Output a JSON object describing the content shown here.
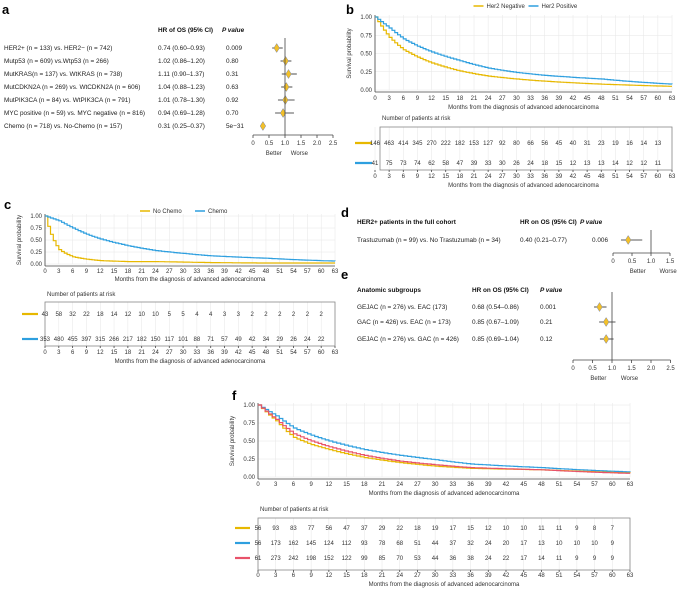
{
  "colors": {
    "yellow": "#E7B800",
    "blue": "#2E9FDF",
    "red": "#E8526A"
  },
  "panels": {
    "a": "a",
    "b": "b",
    "c": "c",
    "d": "d",
    "e": "e",
    "f": "f"
  },
  "forest_a": {
    "header_hr": "HR of OS (95% CI)",
    "header_p": "P value",
    "rows": [
      {
        "label": "HER2+ (n = 133) vs. HER2− (n = 742)",
        "hr_text": "0.74 (0.60–0.93)",
        "p": "0.009",
        "hr": 0.74,
        "lo": 0.6,
        "hi": 0.93
      },
      {
        "label": "Mutp53 (n = 609) vs.Wtp53 (n = 266)",
        "hr_text": "1.02 (0.86–1.20)",
        "p": "0.80",
        "hr": 1.02,
        "lo": 0.86,
        "hi": 1.2
      },
      {
        "label": "MutKRAS(n = 137) vs. WtKRAS (n = 738)",
        "hr_text": "1.11 (0.90–1.37)",
        "p": "0.31",
        "hr": 1.11,
        "lo": 0.9,
        "hi": 1.37
      },
      {
        "label": "MutCDKN2A (n = 269) vs. WtCDKN2A (n = 606)",
        "hr_text": "1.04 (0.88–1.23)",
        "p": "0.63",
        "hr": 1.04,
        "lo": 0.88,
        "hi": 1.23
      },
      {
        "label": "MutPIK3CA (n = 84) vs. WtPIK3CA (n = 791)",
        "hr_text": "1.01 (0.78–1.30)",
        "p": "0.92",
        "hr": 1.01,
        "lo": 0.78,
        "hi": 1.3
      },
      {
        "label": "MYC positive (n = 59) vs. MYC negative (n = 816)",
        "hr_text": "0.94 (0.69–1.28)",
        "p": "0.70",
        "hr": 0.94,
        "lo": 0.69,
        "hi": 1.28
      },
      {
        "label": "Chemo (n = 718) vs. No-Chemo (n = 157)",
        "hr_text": "0.31 (0.25–0.37)",
        "p": "5e−31",
        "hr": 0.31,
        "lo": 0.25,
        "hi": 0.37
      }
    ],
    "ticks": [
      "0",
      "0.5",
      "1.0",
      "1.5",
      "2.0",
      "2.5"
    ],
    "better": "Better",
    "worse": "Worse"
  },
  "forest_d": {
    "title": "HER2+ patients in the full cohort",
    "header_hr": "HR on OS (95% CI)",
    "header_p": "P value",
    "rows": [
      {
        "label": "Trastuzumab (n = 99) vs. No Trastuzumab (n = 34)",
        "hr_text": "0.40 (0.21–0.77)",
        "p": "0.006",
        "hr": 0.4,
        "lo": 0.21,
        "hi": 0.77
      }
    ],
    "ticks": [
      "0",
      "0.5",
      "1.0",
      "1.5"
    ],
    "better": "Better",
    "worse": "Worse"
  },
  "forest_e": {
    "title": "Anatomic subgroups",
    "header_hr": "HR on OS (95% CI)",
    "header_p": "P value",
    "rows": [
      {
        "label": "GEJAC (n = 276) vs. EAC (173)",
        "hr_text": "0.68 (0.54–0.86)",
        "p": "0.001",
        "hr": 0.68,
        "lo": 0.54,
        "hi": 0.86
      },
      {
        "label": "GAC (n = 426) vs. EAC (n = 173)",
        "hr_text": "0.85 (0.67–1.09)",
        "p": "0.21",
        "hr": 0.85,
        "lo": 0.67,
        "hi": 1.09
      },
      {
        "label": "GEJAC (n = 276) vs. GAC (n = 426)",
        "hr_text": "0.85 (0.69–1.04)",
        "p": "0.12",
        "hr": 0.85,
        "lo": 0.69,
        "hi": 1.04
      }
    ],
    "ticks": [
      "0",
      "0.5",
      "1.0",
      "1.5",
      "2.0",
      "2.5"
    ],
    "better": "Better",
    "worse": "Worse"
  },
  "chart_data": [
    {
      "id": "b",
      "type": "line",
      "ylabel": "Survival probability",
      "xlabel": "Months from the diagnosis of advanced adenocarcinoma",
      "xlim": [
        0,
        63
      ],
      "ylim": [
        0,
        1
      ],
      "xticks": [
        0,
        3,
        6,
        9,
        12,
        15,
        18,
        21,
        24,
        27,
        30,
        33,
        36,
        39,
        42,
        45,
        48,
        51,
        54,
        57,
        60,
        63
      ],
      "yticks": [
        "0.00",
        "0.25",
        "0.50",
        "0.75",
        "1.00"
      ],
      "legend": "top",
      "risk_title": "Number of patients at risk",
      "x": [
        0,
        3,
        6,
        9,
        12,
        18,
        24,
        30,
        36,
        48,
        63
      ],
      "series": [
        {
          "name": "Her2 Negative",
          "color": "#E7B800",
          "values": [
            1,
            0.72,
            0.55,
            0.45,
            0.37,
            0.26,
            0.19,
            0.15,
            0.12,
            0.08,
            0.05
          ],
          "at_risk": [
            146,
            463,
            414,
            345,
            270,
            222,
            182,
            153,
            127,
            92,
            80,
            66,
            56,
            45,
            40,
            31,
            23,
            19,
            16,
            14,
            13
          ]
        },
        {
          "name": "Her2 Positive",
          "color": "#2E9FDF",
          "values": [
            1,
            0.85,
            0.7,
            0.6,
            0.52,
            0.4,
            0.3,
            0.24,
            0.2,
            0.15,
            0.08
          ],
          "at_risk": [
            41,
            75,
            73,
            74,
            62,
            58,
            47,
            39,
            33,
            30,
            26,
            24,
            18,
            15,
            12,
            13,
            13,
            14,
            12,
            12,
            11
          ]
        }
      ]
    },
    {
      "id": "c",
      "type": "line",
      "ylabel": "Survival probability",
      "xlabel": "Months from the diagnosis of advanced adenocarcinoma",
      "xlim": [
        0,
        63
      ],
      "ylim": [
        0,
        1
      ],
      "xticks": [
        0,
        3,
        6,
        9,
        12,
        15,
        18,
        21,
        24,
        27,
        30,
        33,
        36,
        39,
        42,
        45,
        48,
        51,
        54,
        57,
        60,
        63
      ],
      "yticks": [
        "0.00",
        "0.25",
        "0.50",
        "0.75",
        "1.00"
      ],
      "legend": "top",
      "risk_title": "Number of patients at risk",
      "x": [
        0,
        3,
        6,
        9,
        12,
        18,
        24,
        30,
        36,
        48,
        63
      ],
      "series": [
        {
          "name": "No Chemo",
          "color": "#E7B800",
          "values": [
            1,
            0.3,
            0.15,
            0.1,
            0.07,
            0.05,
            0.05,
            0.04,
            0.03,
            0.02,
            0.02
          ],
          "at_risk": [
            43,
            58,
            32,
            22,
            18,
            14,
            12,
            10,
            10,
            5,
            5,
            4,
            4,
            3,
            3,
            2,
            2,
            2,
            2,
            2,
            2
          ]
        },
        {
          "name": "Chemo",
          "color": "#2E9FDF",
          "values": [
            1,
            0.9,
            0.75,
            0.62,
            0.52,
            0.38,
            0.28,
            0.22,
            0.17,
            0.12,
            0.06
          ],
          "at_risk": [
            353,
            480,
            455,
            397,
            315,
            266,
            217,
            182,
            150,
            117,
            101,
            88,
            71,
            57,
            49,
            42,
            34,
            29,
            26,
            24,
            22
          ]
        }
      ]
    },
    {
      "id": "f",
      "type": "line",
      "ylabel": "Survival probability",
      "xlabel": "Months from the diagnosis of advanced adenocarcinoma",
      "xlim": [
        0,
        63
      ],
      "ylim": [
        0,
        1
      ],
      "xticks": [
        0,
        3,
        6,
        9,
        12,
        15,
        18,
        21,
        24,
        27,
        30,
        33,
        36,
        39,
        42,
        45,
        48,
        51,
        54,
        57,
        60,
        63
      ],
      "yticks": [
        "0.00",
        "0.25",
        "0.50",
        "0.75",
        "1.00"
      ],
      "legend": "none",
      "risk_title": "Number of patients at risk",
      "x": [
        0,
        3,
        6,
        9,
        12,
        18,
        24,
        30,
        36,
        48,
        63
      ],
      "series": [
        {
          "color": "#E7B800",
          "values": [
            1,
            0.78,
            0.55,
            0.45,
            0.38,
            0.27,
            0.2,
            0.15,
            0.12,
            0.1,
            0.06
          ],
          "at_risk": [
            56,
            93,
            83,
            77,
            56,
            47,
            37,
            29,
            22,
            18,
            19,
            17,
            15,
            12,
            10,
            10,
            11,
            11,
            9,
            8,
            7
          ]
        },
        {
          "color": "#2E9FDF",
          "values": [
            1,
            0.85,
            0.68,
            0.58,
            0.5,
            0.38,
            0.3,
            0.24,
            0.18,
            0.13,
            0.07
          ],
          "at_risk": [
            56,
            173,
            162,
            145,
            124,
            112,
            93,
            78,
            68,
            51,
            44,
            37,
            32,
            24,
            20,
            17,
            13,
            10,
            10,
            10,
            9
          ]
        },
        {
          "color": "#E8526A",
          "values": [
            1,
            0.8,
            0.6,
            0.5,
            0.42,
            0.3,
            0.22,
            0.17,
            0.13,
            0.1,
            0.05
          ],
          "at_risk": [
            61,
            273,
            242,
            198,
            152,
            122,
            99,
            85,
            70,
            53,
            44,
            36,
            38,
            24,
            22,
            17,
            14,
            11,
            9,
            9,
            9
          ]
        }
      ]
    }
  ]
}
